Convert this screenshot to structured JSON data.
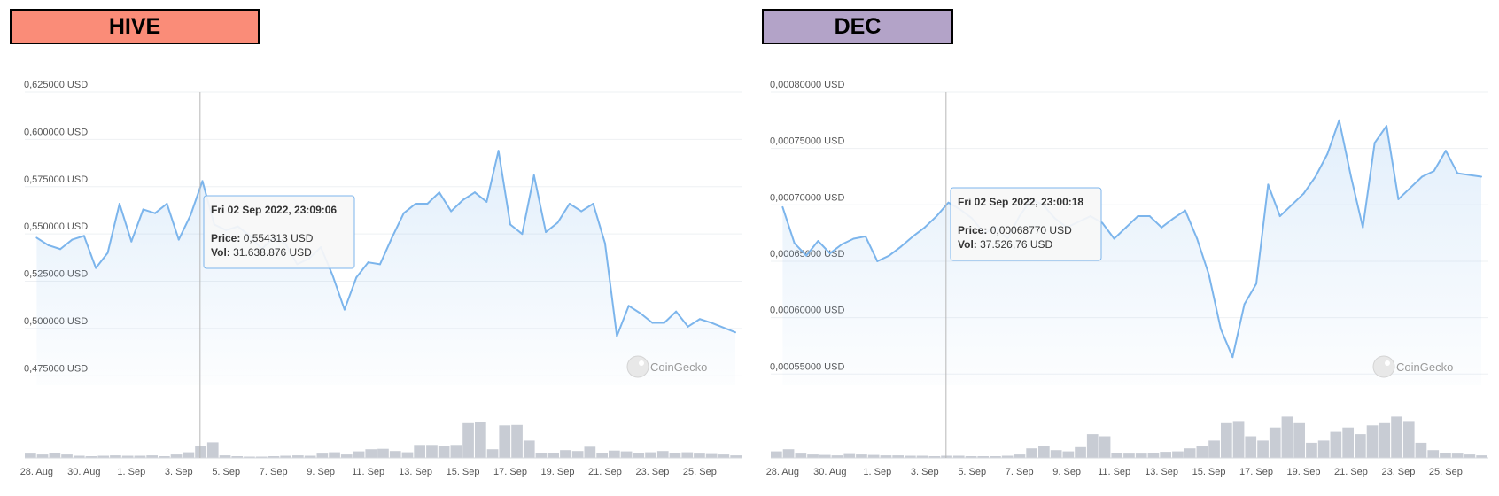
{
  "labels": {
    "left": {
      "text": "HIVE",
      "color": "#fa8c78"
    },
    "right": {
      "text": "DEC",
      "color": "#b3a3c8"
    }
  },
  "x_ticks": [
    "28. Aug",
    "30. Aug",
    "1. Sep",
    "3. Sep",
    "5. Sep",
    "7. Sep",
    "9. Sep",
    "11. Sep",
    "13. Sep",
    "15. Sep",
    "17. Sep",
    "19. Sep",
    "21. Sep",
    "23. Sep",
    "25. Sep"
  ],
  "watermark": "CoinGecko",
  "colors": {
    "line": "#7cb5ec",
    "volume": "#c8ccd4",
    "grid": "#eef0f3",
    "crosshair": "#b8b8b8"
  },
  "chart_data": [
    {
      "type": "line",
      "name": "HIVE",
      "ylim": [
        0.47,
        0.625
      ],
      "y_ticks": [
        "0,625000 USD",
        "0,600000 USD",
        "0,575000 USD",
        "0,550000 USD",
        "0,525000 USD",
        "0,500000 USD",
        "0,475000 USD"
      ],
      "y_tick_values": [
        0.625,
        0.6,
        0.575,
        0.55,
        0.525,
        0.5,
        0.475
      ],
      "x": [
        0,
        0.5,
        1,
        1.5,
        2,
        2.5,
        3,
        3.5,
        4,
        4.5,
        5,
        5.5,
        6,
        6.5,
        7,
        7.5,
        8,
        8.5,
        9,
        9.5,
        10,
        10.5,
        11,
        11.5,
        12,
        12.5,
        13,
        13.5,
        14,
        14.5,
        15,
        15.5,
        16,
        16.5,
        17,
        17.5,
        18,
        18.5,
        19,
        19.5,
        20,
        20.5,
        21,
        21.5,
        22,
        22.5,
        23,
        23.5,
        24,
        24.5,
        25,
        25.5,
        26,
        26.5,
        27,
        27.5,
        28,
        28.5,
        29.5
      ],
      "price": [
        0.548,
        0.544,
        0.542,
        0.547,
        0.549,
        0.532,
        0.54,
        0.566,
        0.546,
        0.563,
        0.561,
        0.566,
        0.547,
        0.56,
        0.578,
        0.555,
        0.552,
        0.554,
        0.549,
        0.542,
        0.548,
        0.545,
        0.534,
        0.537,
        0.543,
        0.528,
        0.51,
        0.527,
        0.535,
        0.534,
        0.548,
        0.561,
        0.566,
        0.566,
        0.572,
        0.562,
        0.568,
        0.572,
        0.567,
        0.594,
        0.555,
        0.55,
        0.581,
        0.551,
        0.556,
        0.566,
        0.562,
        0.566,
        0.545,
        0.496,
        0.512,
        0.508,
        0.503,
        0.503,
        0.509,
        0.501,
        0.505,
        0.503,
        0.498
      ],
      "volume": [
        0.1,
        0.08,
        0.12,
        0.08,
        0.05,
        0.04,
        0.05,
        0.06,
        0.05,
        0.05,
        0.06,
        0.04,
        0.08,
        0.13,
        0.28,
        0.36,
        0.06,
        0.04,
        0.03,
        0.03,
        0.04,
        0.05,
        0.06,
        0.05,
        0.1,
        0.13,
        0.08,
        0.15,
        0.2,
        0.21,
        0.16,
        0.13,
        0.3,
        0.3,
        0.28,
        0.3,
        0.8,
        0.82,
        0.2,
        0.75,
        0.76,
        0.4,
        0.12,
        0.12,
        0.18,
        0.16,
        0.26,
        0.12,
        0.17,
        0.15,
        0.12,
        0.13,
        0.16,
        0.12,
        0.13,
        0.1,
        0.09,
        0.08,
        0.06
      ],
      "tooltip": {
        "date": "Fri 02 Sep 2022, 23:09:06",
        "price_label": "Price:",
        "price": "0,554313 USD",
        "vol_label": "Vol:",
        "vol": "31.638.876 USD"
      },
      "crosshair_x": 6.9
    },
    {
      "type": "line",
      "name": "DEC",
      "ylim": [
        0.00054,
        0.0008
      ],
      "y_ticks": [
        "0,00080000 USD",
        "0,00075000 USD",
        "0,00070000 USD",
        "0,00065000 USD",
        "0,00060000 USD",
        "0,00055000 USD"
      ],
      "y_tick_values": [
        0.0008,
        0.00075,
        0.0007,
        0.00065,
        0.0006,
        0.00055
      ],
      "x": [
        0,
        0.5,
        1,
        1.5,
        2,
        2.5,
        3,
        3.5,
        4,
        4.5,
        5,
        5.5,
        6,
        6.5,
        7,
        7.5,
        8,
        8.5,
        9,
        9.5,
        10,
        10.5,
        11,
        11.5,
        12,
        12.5,
        13,
        13.5,
        14,
        14.5,
        15,
        15.5,
        16,
        16.5,
        17,
        17.5,
        18,
        18.5,
        19,
        19.5,
        20,
        20.5,
        21,
        21.5,
        22,
        22.5,
        23,
        23.5,
        24,
        24.5,
        25,
        25.5,
        26,
        26.5,
        27,
        27.5,
        28,
        28.5,
        29.5
      ],
      "price": [
        0.000698,
        0.000666,
        0.000655,
        0.000668,
        0.000657,
        0.000665,
        0.00067,
        0.000672,
        0.00065,
        0.000655,
        0.000663,
        0.000672,
        0.00068,
        0.00069,
        0.000702,
        0.000696,
        0.000688,
        0.000675,
        0.00068,
        0.00067,
        0.00069,
        0.000705,
        0.0007,
        0.000688,
        0.00068,
        0.000685,
        0.00069,
        0.000684,
        0.00067,
        0.00068,
        0.00069,
        0.00069,
        0.00068,
        0.000688,
        0.000695,
        0.00067,
        0.000638,
        0.00059,
        0.000565,
        0.000612,
        0.00063,
        0.000718,
        0.00069,
        0.0007,
        0.00071,
        0.000725,
        0.000745,
        0.000775,
        0.000725,
        0.00068,
        0.000755,
        0.00077,
        0.000705,
        0.000715,
        0.000725,
        0.00073,
        0.000748,
        0.000728,
        0.000725
      ],
      "volume": [
        0.15,
        0.2,
        0.1,
        0.08,
        0.07,
        0.06,
        0.09,
        0.08,
        0.07,
        0.06,
        0.06,
        0.05,
        0.05,
        0.04,
        0.05,
        0.05,
        0.04,
        0.04,
        0.04,
        0.05,
        0.08,
        0.22,
        0.28,
        0.18,
        0.15,
        0.25,
        0.55,
        0.5,
        0.12,
        0.1,
        0.1,
        0.12,
        0.14,
        0.15,
        0.22,
        0.28,
        0.4,
        0.8,
        0.85,
        0.5,
        0.4,
        0.7,
        0.95,
        0.8,
        0.35,
        0.4,
        0.6,
        0.7,
        0.55,
        0.75,
        0.8,
        0.95,
        0.85,
        0.35,
        0.18,
        0.12,
        0.1,
        0.08,
        0.06
      ],
      "tooltip": {
        "date": "Fri 02 Sep 2022, 23:00:18",
        "price_label": "Price:",
        "price": "0,00068770 USD",
        "vol_label": "Vol:",
        "vol": "37.526,76 USD"
      },
      "crosshair_x": 6.9
    }
  ]
}
